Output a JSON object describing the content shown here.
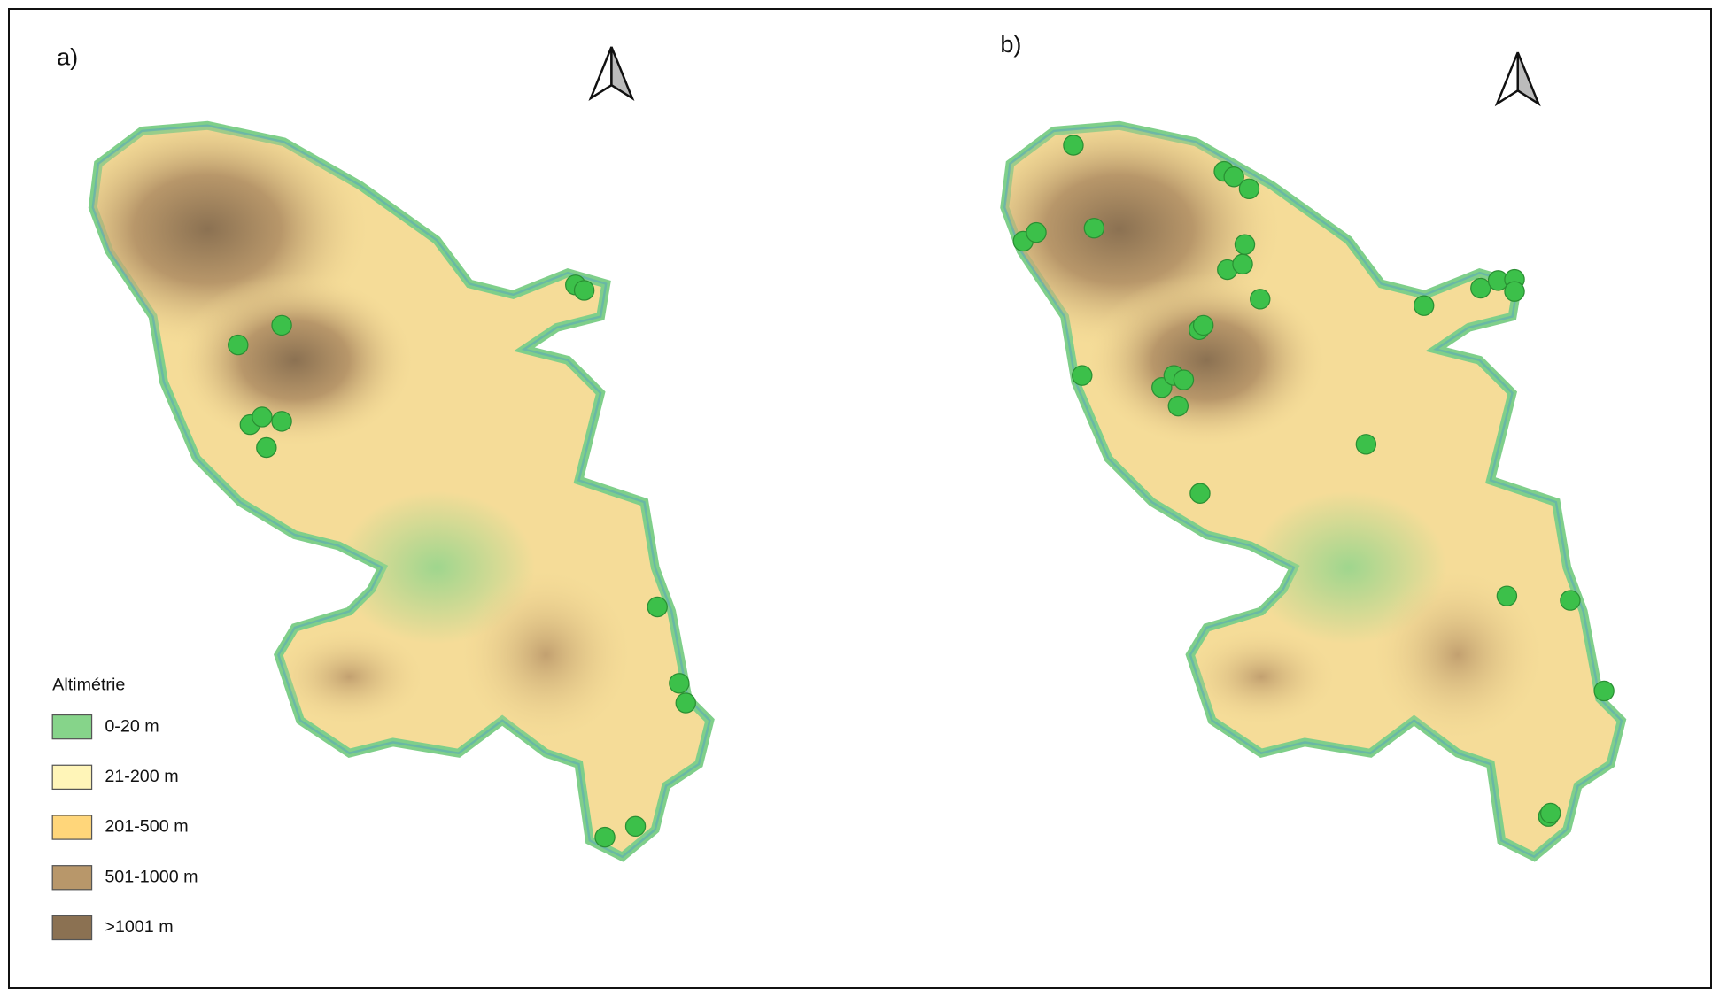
{
  "panels": [
    {
      "label": "a)"
    },
    {
      "label": "b)"
    }
  ],
  "legend": {
    "title": "Altimétrie",
    "items": [
      {
        "label": "0-20 m",
        "color": "#86d48a"
      },
      {
        "label": "21-200 m",
        "color": "#fff5b8"
      },
      {
        "label": "201-500 m",
        "color": "#ffd67a"
      },
      {
        "label": "501-1000 m",
        "color": "#b8976a"
      },
      {
        "label": ">1001 m",
        "color": "#8b7152"
      }
    ]
  }
}
